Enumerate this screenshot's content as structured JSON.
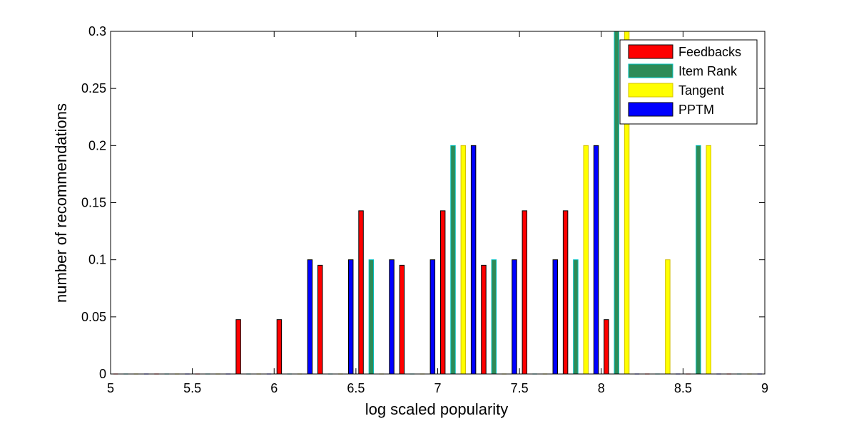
{
  "chart_data": {
    "type": "bar",
    "xlabel": "log scaled popularity",
    "ylabel": "number of recommendations",
    "xlim": [
      5,
      9
    ],
    "ylim": [
      0,
      0.3
    ],
    "xticks": [
      "5",
      "5.5",
      "6",
      "6.5",
      "7",
      "7.5",
      "8",
      "8.5",
      "9"
    ],
    "yticks": [
      "0",
      "0.05",
      "0.1",
      "0.15",
      "0.2",
      "0.25",
      "0.3"
    ],
    "bin_width": 0.25,
    "grid": false,
    "legend_position": "top-right",
    "x": [
      5.125,
      5.375,
      5.625,
      5.875,
      6.125,
      6.375,
      6.625,
      6.875,
      7.125,
      7.375,
      7.625,
      7.875,
      8.125,
      8.375,
      8.625,
      8.875
    ],
    "series": [
      {
        "name": "Feedbacks",
        "color": "#ff0000",
        "values": [
          0,
          0,
          0,
          0.0476,
          0.0476,
          0.0952,
          0.1429,
          0.0952,
          0.1429,
          0.0952,
          0.1429,
          0.1429,
          0.0476,
          0,
          0,
          0
        ]
      },
      {
        "name": "Item Rank",
        "color": "#2e8b57",
        "edge": "#00c0c0",
        "values": [
          0,
          0,
          0,
          0,
          0,
          0,
          0.1,
          0,
          0.2,
          0.1,
          0,
          0.1,
          0.3,
          0,
          0.2,
          0
        ]
      },
      {
        "name": "Tangent",
        "color": "#ffff00",
        "edge": "#d4c000",
        "values": [
          0,
          0,
          0,
          0,
          0,
          0,
          0,
          0,
          0.2,
          0,
          0,
          0.2,
          0.3,
          0.1,
          0.2,
          0
        ]
      },
      {
        "name": "PPTM",
        "color": "#0000ff",
        "values": [
          0,
          0,
          0,
          0,
          0.1,
          0.1,
          0.1,
          0.1,
          0.2,
          0.1,
          0.1,
          0.2,
          0,
          0,
          0,
          0
        ]
      }
    ]
  }
}
